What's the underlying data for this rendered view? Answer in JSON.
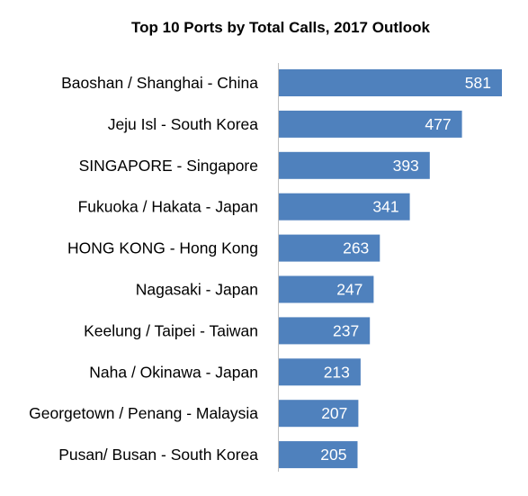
{
  "chart_data": {
    "type": "bar",
    "orientation": "horizontal",
    "title": "Top 10 Ports by Total Calls, 2017 Outlook",
    "xlabel": "",
    "ylabel": "",
    "categories": [
      "Baoshan / Shanghai - China",
      "Jeju Isl - South Korea",
      "SINGAPORE - Singapore",
      "Fukuoka / Hakata - Japan",
      "HONG KONG - Hong Kong",
      "Nagasaki - Japan",
      "Keelung / Taipei - Taiwan",
      "Naha / Okinawa - Japan",
      "Georgetown / Penang - Malaysia",
      "Pusan/ Busan - South Korea"
    ],
    "values": [
      581,
      477,
      393,
      341,
      263,
      247,
      237,
      213,
      207,
      205
    ],
    "xlim": [
      0,
      581
    ],
    "data_labels": true,
    "grid": false,
    "legend": "none",
    "bar_color": "#4f81bd",
    "label_color": "#ffffff"
  }
}
